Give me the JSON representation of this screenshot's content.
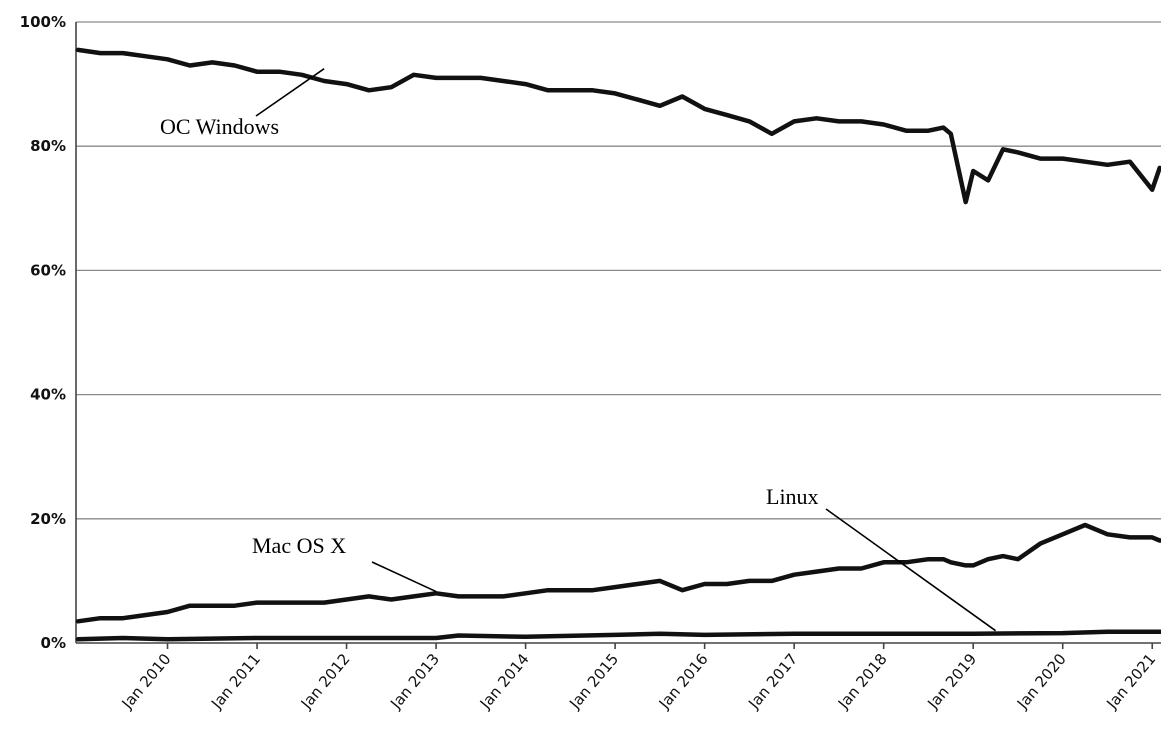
{
  "chart_data": {
    "type": "line",
    "xlabel": "",
    "ylabel": "",
    "ylim": [
      0,
      100
    ],
    "xlim": [
      "2009-01",
      "2021-03"
    ],
    "grid": true,
    "y_ticks": [
      {
        "value": 0,
        "label": "0%"
      },
      {
        "value": 20,
        "label": "20%"
      },
      {
        "value": 40,
        "label": "40%"
      },
      {
        "value": 60,
        "label": "60%"
      },
      {
        "value": 80,
        "label": "80%"
      },
      {
        "value": 100,
        "label": "100%"
      }
    ],
    "x_ticks": [
      {
        "value": "2010-01",
        "label": "Jan 2010"
      },
      {
        "value": "2011-01",
        "label": "Jan 2011"
      },
      {
        "value": "2012-01",
        "label": "Jan 2012"
      },
      {
        "value": "2013-01",
        "label": "Jan 2013"
      },
      {
        "value": "2014-01",
        "label": "Jan 2014"
      },
      {
        "value": "2015-01",
        "label": "Jan 2015"
      },
      {
        "value": "2016-01",
        "label": "Jan 2016"
      },
      {
        "value": "2017-01",
        "label": "Jan 2017"
      },
      {
        "value": "2018-01",
        "label": "Jan 2018"
      },
      {
        "value": "2019-01",
        "label": "Jan 2019"
      },
      {
        "value": "2020-01",
        "label": "Jan 2020"
      },
      {
        "value": "2021-01",
        "label": "Jan 2021"
      }
    ],
    "series": [
      {
        "name": "OC Windows",
        "x": [
          "2009-01",
          "2009-04",
          "2009-07",
          "2009-10",
          "2010-01",
          "2010-04",
          "2010-07",
          "2010-10",
          "2011-01",
          "2011-04",
          "2011-07",
          "2011-10",
          "2012-01",
          "2012-04",
          "2012-07",
          "2012-10",
          "2013-01",
          "2013-04",
          "2013-07",
          "2013-10",
          "2014-01",
          "2014-04",
          "2014-07",
          "2014-10",
          "2015-01",
          "2015-04",
          "2015-07",
          "2015-10",
          "2016-01",
          "2016-04",
          "2016-07",
          "2016-10",
          "2017-01",
          "2017-04",
          "2017-07",
          "2017-10",
          "2018-01",
          "2018-04",
          "2018-07",
          "2018-09",
          "2018-10",
          "2018-12",
          "2019-01",
          "2019-03",
          "2019-05",
          "2019-07",
          "2019-10",
          "2020-01",
          "2020-04",
          "2020-07",
          "2020-10",
          "2021-01",
          "2021-02",
          "2021-03"
        ],
        "values": [
          95.5,
          95.0,
          95.0,
          94.5,
          94.0,
          93.0,
          93.5,
          93.0,
          92.0,
          92.0,
          91.5,
          90.5,
          90.0,
          89.0,
          89.5,
          91.5,
          91.0,
          91.0,
          91.0,
          90.5,
          90.0,
          89.0,
          89.0,
          89.0,
          88.5,
          87.5,
          86.5,
          88.0,
          86.0,
          85.0,
          84.0,
          82.0,
          84.0,
          84.5,
          84.0,
          84.0,
          83.5,
          82.5,
          82.5,
          83.0,
          82.0,
          71.0,
          76.0,
          74.5,
          79.5,
          79.0,
          78.0,
          78.0,
          77.5,
          77.0,
          77.5,
          73.0,
          76.5,
          76.0
        ]
      },
      {
        "name": "Mac OS X",
        "x": [
          "2009-01",
          "2009-04",
          "2009-07",
          "2009-10",
          "2010-01",
          "2010-04",
          "2010-07",
          "2010-10",
          "2011-01",
          "2011-04",
          "2011-07",
          "2011-10",
          "2012-01",
          "2012-04",
          "2012-07",
          "2012-10",
          "2013-01",
          "2013-04",
          "2013-07",
          "2013-10",
          "2014-01",
          "2014-04",
          "2014-07",
          "2014-10",
          "2015-01",
          "2015-04",
          "2015-07",
          "2015-10",
          "2016-01",
          "2016-04",
          "2016-07",
          "2016-10",
          "2017-01",
          "2017-04",
          "2017-07",
          "2017-10",
          "2018-01",
          "2018-04",
          "2018-07",
          "2018-09",
          "2018-10",
          "2018-12",
          "2019-01",
          "2019-03",
          "2019-05",
          "2019-07",
          "2019-10",
          "2020-01",
          "2020-04",
          "2020-07",
          "2020-10",
          "2021-01",
          "2021-02",
          "2021-03"
        ],
        "values": [
          3.5,
          4.0,
          4.0,
          4.5,
          5.0,
          6.0,
          6.0,
          6.0,
          6.5,
          6.5,
          6.5,
          6.5,
          7.0,
          7.5,
          7.0,
          7.5,
          8.0,
          7.5,
          7.5,
          7.5,
          8.0,
          8.5,
          8.5,
          8.5,
          9.0,
          9.5,
          10.0,
          8.5,
          9.5,
          9.5,
          10.0,
          10.0,
          11.0,
          11.5,
          12.0,
          12.0,
          13.0,
          13.0,
          13.5,
          13.5,
          13.0,
          12.5,
          12.5,
          13.5,
          14.0,
          13.5,
          16.0,
          17.5,
          19.0,
          17.5,
          17.0,
          17.0,
          16.5,
          16.5
        ]
      },
      {
        "name": "Linux",
        "x": [
          "2009-01",
          "2009-07",
          "2010-01",
          "2011-01",
          "2012-01",
          "2013-01",
          "2013-04",
          "2014-01",
          "2015-01",
          "2015-07",
          "2016-01",
          "2017-01",
          "2018-01",
          "2019-01",
          "2020-01",
          "2020-07",
          "2021-01",
          "2021-03"
        ],
        "values": [
          0.6,
          0.8,
          0.6,
          0.8,
          0.8,
          0.8,
          1.2,
          1.0,
          1.3,
          1.5,
          1.3,
          1.5,
          1.5,
          1.5,
          1.6,
          1.8,
          1.8,
          1.8
        ]
      }
    ],
    "annotations": [
      {
        "text": "OC Windows",
        "series": "OC Windows",
        "points_to": "2011-10"
      },
      {
        "text": "Mac OS X",
        "series": "Mac OS X",
        "points_to": "2013-01"
      },
      {
        "text": "Linux",
        "series": "Linux",
        "points_to": "2019-04"
      }
    ]
  }
}
